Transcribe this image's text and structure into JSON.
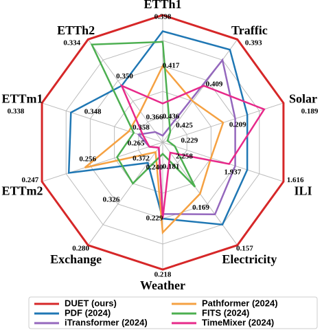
{
  "chart_data": {
    "type": "radar",
    "axes": [
      {
        "name": "ETTh1",
        "rlim": [
          0.4455,
          0.398
        ],
        "ticks": [
          0.436,
          0.417,
          0.398
        ]
      },
      {
        "name": "Traffic",
        "rlim": [
          0.433,
          0.393
        ],
        "ticks": [
          0.425,
          0.409,
          0.393
        ]
      },
      {
        "name": "Solar",
        "rlim": [
          0.239,
          0.189
        ],
        "ticks": [
          0.229,
          0.209,
          0.189
        ]
      },
      {
        "name": "ILI",
        "rlim": [
          2.4185,
          1.616
        ],
        "ticks": [
          2.258,
          1.937,
          1.616
        ]
      },
      {
        "name": "Electricity",
        "rlim": [
          0.187,
          0.157
        ],
        "ticks": [
          0.181,
          0.169,
          0.157
        ]
      },
      {
        "name": "Weather",
        "rlim": [
          0.2455,
          0.218
        ],
        "ticks": [
          {
            "value": 0.24,
            "label": "0.240"
          },
          0.229,
          0.218
        ]
      },
      {
        "name": "Exchange",
        "rlim": [
          0.395,
          0.28
        ],
        "ticks": [
          0.372,
          0.326,
          {
            "value": 0.28,
            "label": "0.280"
          }
        ]
      },
      {
        "name": "ETTm2",
        "rlim": [
          0.2695,
          0.247
        ],
        "ticks": [
          0.265,
          0.256,
          0.247
        ]
      },
      {
        "name": "ETTm1",
        "rlim": [
          0.363,
          0.338
        ],
        "ticks": [
          0.358,
          0.348,
          0.338
        ]
      },
      {
        "name": "ETTh2",
        "rlim": [
          0.374,
          0.334
        ],
        "ticks": [
          0.366,
          {
            "value": 0.35,
            "label": "0.350"
          },
          0.334
        ]
      }
    ],
    "series": [
      {
        "name": "DUET (ours)",
        "color": "#d62728",
        "values": [
          0.398,
          0.393,
          0.189,
          1.616,
          0.157,
          0.218,
          0.28,
          0.247,
          0.338,
          0.334
        ]
      },
      {
        "name": "PDF (2024)",
        "color": "#1f77b4",
        "values": [
          0.404,
          0.397,
          0.204,
          1.857,
          0.163,
          0.229,
          0.372,
          0.252,
          0.344,
          0.352
        ]
      },
      {
        "name": "iTransformer (2024)",
        "color": "#9467bd",
        "values": [
          0.443,
          0.401,
          0.209,
          1.937,
          0.166,
          0.23,
          0.389,
          0.267,
          0.358,
          0.37
        ]
      },
      {
        "name": "Pathformer (2024)",
        "color": "#f5a142",
        "values": [
          0.417,
          0.417,
          0.214,
          2.098,
          0.172,
          0.226,
          0.384,
          0.255,
          0.356,
          0.362
        ]
      },
      {
        "name": "FITS (2024)",
        "color": "#4caf50",
        "values": [
          0.408,
          0.429,
          0.237,
          2.338,
          0.174,
          0.243,
          0.349,
          0.261,
          0.357,
          0.336
        ]
      },
      {
        "name": "TimeMixer (2024)",
        "color": "#e7298a",
        "values": [
          0.431,
          0.411,
          0.197,
          1.977,
          0.184,
          0.229,
          0.389,
          0.267,
          0.359,
          0.352
        ]
      }
    ],
    "legend": "bottom"
  }
}
